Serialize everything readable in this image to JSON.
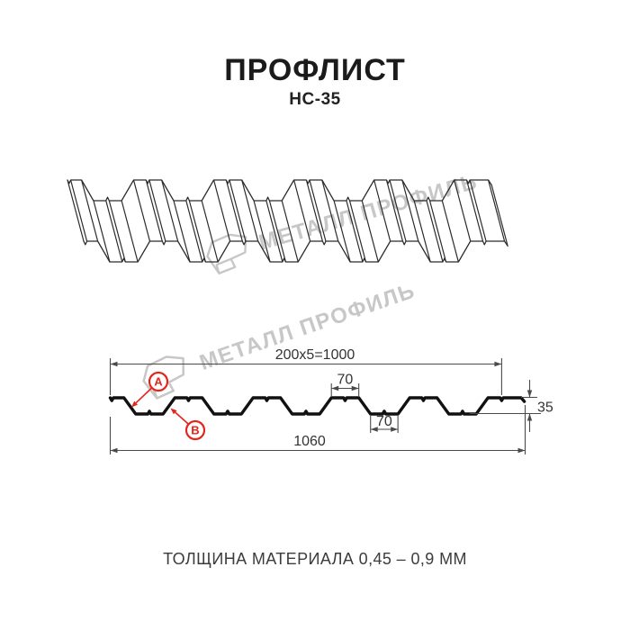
{
  "header": {
    "title": "ПРОФЛИСТ",
    "subtitle": "НС-35"
  },
  "footer": {
    "thickness_note": "ТОЛЩИНА МАТЕРИАЛА 0,45 – 0,9 ММ"
  },
  "watermark": {
    "text": "МЕТАЛЛ ПРОФИЛЬ",
    "color": "#c7c7c7"
  },
  "section_labels": {
    "a": "А",
    "b": "В"
  },
  "dimensions": {
    "module_width": "200x5=1000",
    "rib_top_width": "70",
    "rib_bottom_width": "70",
    "profile_height": "35",
    "overall_width": "1060"
  },
  "profile_spec": {
    "name": "НС-35",
    "pitch_mm": 200,
    "modules": 5,
    "working_width_mm": 1000,
    "overall_width_mm": 1060,
    "height_mm": 35,
    "top_flange_mm": 70,
    "bottom_flange_mm": 70
  },
  "colors": {
    "iso_line": "#2b2b2b",
    "profile_line": "#111111",
    "dimension_line": "#4a4a4a",
    "dimension_text": "#333333",
    "accent_red": "#e3251d"
  }
}
